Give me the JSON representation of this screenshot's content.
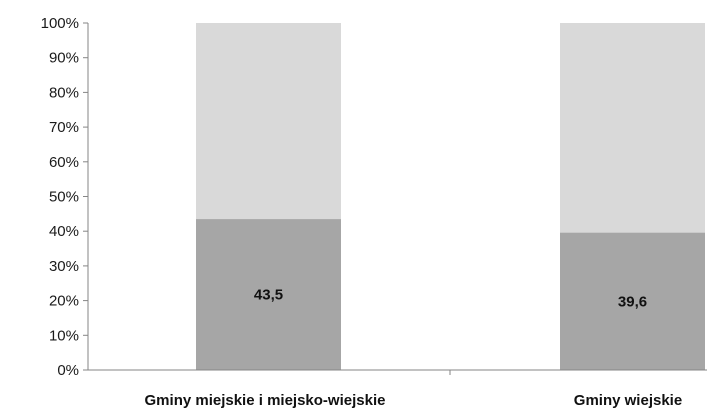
{
  "chart_data": {
    "type": "bar",
    "stacked": true,
    "percent_stacked": true,
    "categories": [
      "Gminy miejskie i miejsko-wiejskie",
      "Gminy wiejskie"
    ],
    "series": [
      {
        "values": [
          43.5,
          39.6
        ],
        "labels": [
          "43,5",
          "39,6"
        ],
        "color": "#a6a6a6"
      },
      {
        "values": [
          56.5,
          60.4
        ],
        "color": "#d9d9d9"
      }
    ],
    "y_ticks": [
      "0%",
      "10%",
      "20%",
      "30%",
      "40%",
      "50%",
      "60%",
      "70%",
      "80%",
      "90%",
      "100%"
    ],
    "ylim": [
      0,
      100
    ],
    "grid": false,
    "legend": "none"
  }
}
